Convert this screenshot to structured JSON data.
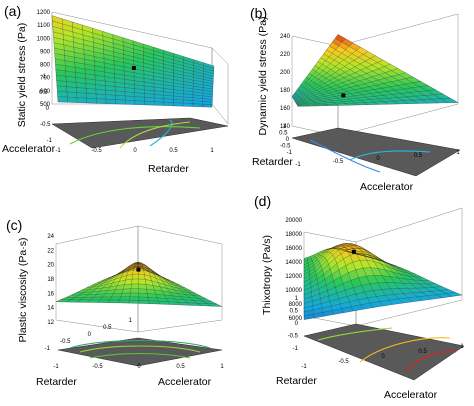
{
  "chart_data": [
    {
      "type": "surface",
      "panel_label": "(a)",
      "zlabel": "Static yield stress (Pa)",
      "xlabel": "Retarder",
      "ylabel": "Accelerator",
      "x_ticks": [
        "-1",
        "-0.5",
        "0",
        "0.5",
        "1"
      ],
      "y_ticks": [
        "-1",
        "-0.5",
        "0",
        "0.5",
        "1"
      ],
      "z_ticks": [
        "500",
        "600",
        "700",
        "800",
        "900",
        "1000",
        "1100",
        "1200"
      ],
      "zlim": [
        500,
        1200
      ],
      "colormap": "blue-green-yellow-red",
      "surface_corners": {
        "near_left": 700,
        "near_right": 640,
        "far_left": 1050,
        "far_right": 700
      },
      "marked_point": 800
    },
    {
      "type": "surface",
      "panel_label": "(b)",
      "zlabel": "Dynamic yield stress (Pa)",
      "xlabel": "Accelerator",
      "ylabel": "Retarder",
      "x_ticks": [
        "-1",
        "-0.5",
        "0",
        "0.5",
        "1"
      ],
      "y_ticks": [
        "-1",
        "-0.5",
        "0",
        "0.5",
        "1"
      ],
      "z_ticks": [
        "140",
        "160",
        "180",
        "200",
        "220",
        "240"
      ],
      "zlim": [
        130,
        240
      ],
      "colormap": "blue-green-yellow-red",
      "surface_corners": {
        "near_left": 175,
        "near_right": 160,
        "far_left": 160,
        "far_right": 238
      },
      "marked_point": 162
    },
    {
      "type": "surface",
      "panel_label": "(c)",
      "zlabel": "Plastic viscosity (Pa·s)",
      "xlabel": "Accelerator",
      "ylabel": "Retarder",
      "x_ticks": [
        "-1",
        "-0.5",
        "0",
        "0.5",
        "1"
      ],
      "y_ticks": [
        "-1",
        "-0.5",
        "0",
        "0.5",
        "1"
      ],
      "z_ticks": [
        "12",
        "14",
        "16",
        "18",
        "20",
        "22",
        "24"
      ],
      "zlim": [
        12,
        24
      ],
      "colormap": "blue-green-yellow-red",
      "surface_corners": {
        "near_left": 17,
        "near_right": 16,
        "far_left": 20,
        "far_right": 20
      },
      "surface_peak": 22,
      "marked_point": 21.5
    },
    {
      "type": "surface",
      "panel_label": "(d)",
      "zlabel": "Thixotropy (Pa/s)",
      "xlabel": "Accelerator",
      "ylabel": "Retarder",
      "x_ticks": [
        "-1",
        "-0.5",
        "0",
        "0.5",
        "1"
      ],
      "y_ticks": [
        "-1",
        "-0.5",
        "0",
        "0.5",
        "1"
      ],
      "z_ticks": [
        "6000",
        "8000",
        "10000",
        "12000",
        "14000",
        "16000",
        "18000",
        "20000"
      ],
      "zlim": [
        6000,
        20000
      ],
      "colormap": "blue-green-yellow-red",
      "surface_corners": {
        "near_left": 8000,
        "near_right": 9000,
        "far_left": 12000,
        "far_right": 14000
      },
      "surface_peak": 17500,
      "marked_point": 17000
    }
  ]
}
